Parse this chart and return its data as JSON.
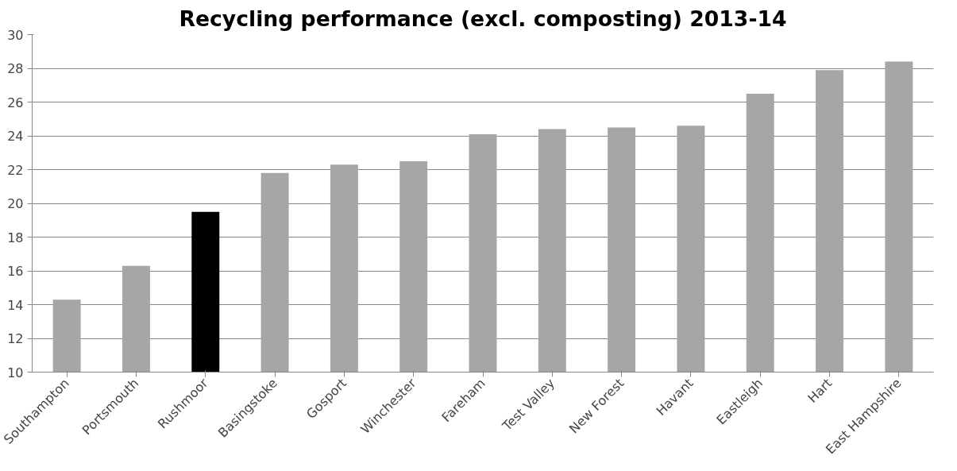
{
  "chart_data": {
    "type": "bar",
    "title": "Recycling performance (excl. composting) 2013-14",
    "categories": [
      "Southampton",
      "Portsmouth",
      "Rushmoor",
      "Basingstoke",
      "Gosport",
      "Winchester",
      "Fareham",
      "Test Valley",
      "New Forest",
      "Havant",
      "Eastleigh",
      "Hart",
      "East Hampshire"
    ],
    "values": [
      14.3,
      16.3,
      19.5,
      21.8,
      22.3,
      22.5,
      24.1,
      24.4,
      24.5,
      24.6,
      26.5,
      27.9,
      28.4
    ],
    "colors": [
      "#a6a6a6",
      "#a6a6a6",
      "#000000",
      "#a6a6a6",
      "#a6a6a6",
      "#a6a6a6",
      "#a6a6a6",
      "#a6a6a6",
      "#a6a6a6",
      "#a6a6a6",
      "#a6a6a6",
      "#a6a6a6",
      "#a6a6a6"
    ],
    "ylim": [
      10,
      30
    ],
    "yticks": [
      10,
      12,
      14,
      16,
      18,
      20,
      22,
      24,
      26,
      28,
      30
    ],
    "grid": "y"
  }
}
